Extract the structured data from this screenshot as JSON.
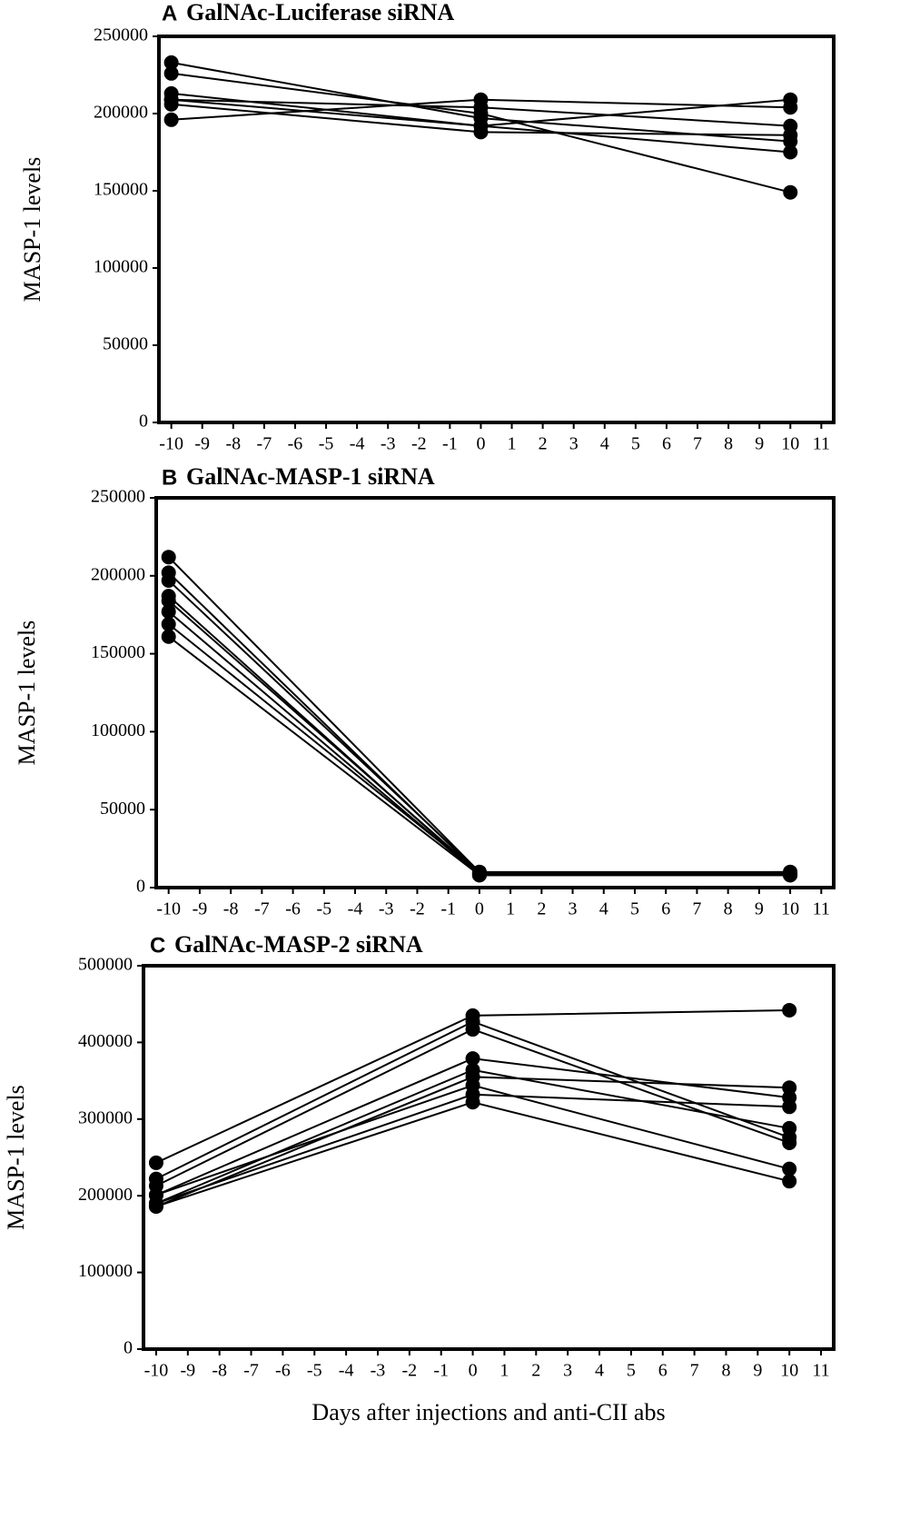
{
  "chart_data": [
    {
      "type": "line",
      "panel_label": "A",
      "title": "GalNAc-Luciferase siRNA",
      "ylabel": "MASP-1 levels",
      "x": [
        -10,
        0,
        10
      ],
      "color": "#000000",
      "xlim": [
        -10.4,
        11.4
      ],
      "xticks": [
        -10,
        -9,
        -8,
        -7,
        -6,
        -5,
        -4,
        -3,
        -2,
        -1,
        0,
        1,
        2,
        3,
        4,
        5,
        6,
        7,
        8,
        9,
        10,
        11
      ],
      "ylim": [
        0,
        250000
      ],
      "yticks": [
        0,
        50000,
        100000,
        150000,
        200000,
        250000
      ],
      "series": [
        {
          "values": [
            233000,
            197000,
            182000
          ]
        },
        {
          "values": [
            226000,
            200000,
            149000
          ]
        },
        {
          "values": [
            213000,
            192000,
            209000
          ]
        },
        {
          "values": [
            209000,
            204000,
            192000
          ]
        },
        {
          "values": [
            206000,
            188000,
            186000
          ]
        },
        {
          "values": [
            196000,
            209000,
            204000
          ]
        },
        {
          "values": [
            209000,
            192000,
            175000
          ]
        }
      ]
    },
    {
      "type": "line",
      "panel_label": "B",
      "title": "GalNAc-MASP-1 siRNA",
      "ylabel": "MASP-1 levels",
      "x": [
        -10,
        0,
        10
      ],
      "color": "#000000",
      "xlim": [
        -10.4,
        11.4
      ],
      "xticks": [
        -10,
        -9,
        -8,
        -7,
        -6,
        -5,
        -4,
        -3,
        -2,
        -1,
        0,
        1,
        2,
        3,
        4,
        5,
        6,
        7,
        8,
        9,
        10,
        11
      ],
      "ylim": [
        0,
        250000
      ],
      "yticks": [
        0,
        50000,
        100000,
        150000,
        200000,
        250000
      ],
      "series": [
        {
          "values": [
            212000,
            10000,
            10000
          ]
        },
        {
          "values": [
            202000,
            9000,
            9000
          ]
        },
        {
          "values": [
            197000,
            10000,
            9000
          ]
        },
        {
          "values": [
            187000,
            8000,
            8000
          ]
        },
        {
          "values": [
            184000,
            9000,
            10000
          ]
        },
        {
          "values": [
            177000,
            8000,
            8000
          ]
        },
        {
          "values": [
            169000,
            9000,
            9000
          ]
        },
        {
          "values": [
            161000,
            8000,
            8000
          ]
        }
      ]
    },
    {
      "type": "line",
      "panel_label": "C",
      "title": "GalNAc-MASP-2 siRNA",
      "ylabel": "MASP-1 levels",
      "xlabel": "Days after injections and anti-CII abs",
      "x": [
        -10,
        0,
        10
      ],
      "color": "#000000",
      "xlim": [
        -10.4,
        11.4
      ],
      "xticks": [
        -10,
        -9,
        -8,
        -7,
        -6,
        -5,
        -4,
        -3,
        -2,
        -1,
        0,
        1,
        2,
        3,
        4,
        5,
        6,
        7,
        8,
        9,
        10,
        11
      ],
      "ylim": [
        0,
        500000
      ],
      "yticks": [
        0,
        100000,
        200000,
        300000,
        400000,
        500000
      ],
      "series": [
        {
          "values": [
            243000,
            435000,
            442000
          ]
        },
        {
          "values": [
            222000,
            427000,
            276000
          ]
        },
        {
          "values": [
            213000,
            417000,
            269000
          ]
        },
        {
          "values": [
            201000,
            379000,
            328000
          ]
        },
        {
          "values": [
            190000,
            364000,
            288000
          ]
        },
        {
          "values": [
            186000,
            355000,
            341000
          ]
        },
        {
          "values": [
            201000,
            344000,
            235000
          ]
        },
        {
          "values": [
            190000,
            332000,
            316000
          ]
        },
        {
          "values": [
            186000,
            322000,
            219000
          ]
        }
      ]
    }
  ]
}
